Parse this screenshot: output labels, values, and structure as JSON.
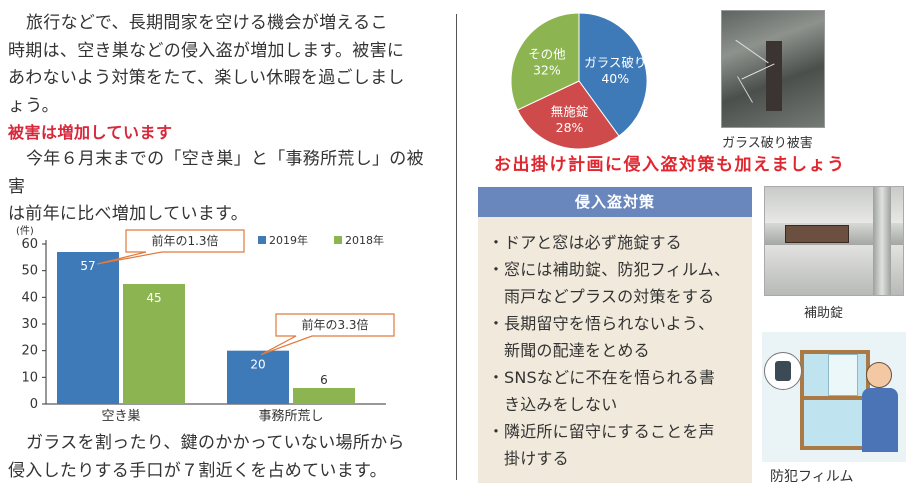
{
  "intro": {
    "line1": "旅行などで、長期間家を空ける機会が増えるこ",
    "line2": "時期は、空き巣などの侵入盗が増加します。被害に",
    "line3": "あわないよう対策をたて、楽しい休暇を過ごしまし",
    "line4": "ょう。"
  },
  "heading_increase": "被害は増加しています",
  "para2": {
    "line1": "今年６月末までの「空き巣」と「事務所荒し」の被害",
    "line2": "は前年に比べ増加しています。"
  },
  "bottom": {
    "line1": "ガラスを割ったり、鍵のかかっていない場所から",
    "line2": "侵入したりする手口が７割近くを占めています。"
  },
  "chart_data": [
    {
      "type": "bar",
      "categories": [
        "空き巣",
        "事務所荒し"
      ],
      "series": [
        {
          "name": "2019年",
          "values": [
            57,
            20
          ],
          "color": "#3e7ab8"
        },
        {
          "name": "2018年",
          "values": [
            45,
            6
          ],
          "color": "#8cb450"
        }
      ],
      "ylabel": "(件)",
      "ylim": [
        0,
        60
      ],
      "yticks": [
        0,
        10,
        20,
        30,
        40,
        50,
        60
      ],
      "legend": "top",
      "annotations": [
        "前年の1.3倍",
        "前年の3.3倍"
      ],
      "grid": false
    },
    {
      "type": "pie",
      "labels": [
        "ガラス破り",
        "無施錠",
        "その他"
      ],
      "values": [
        40,
        28,
        32
      ],
      "value_labels": [
        "40%",
        "28%",
        "32%"
      ],
      "colors": [
        "#3e7ab8",
        "#cf4a4a",
        "#8cb450"
      ]
    }
  ],
  "captions": {
    "glass_photo": "ガラス破り被害",
    "lock_photo": "補助錠",
    "film_illus": "防犯フィルム"
  },
  "heading_outing": "お出掛け計画に侵入盗対策も加えましょう",
  "measures": {
    "title": "侵入盗対策",
    "bullet": "・",
    "items": [
      {
        "lines": [
          "ドアと窓は必ず施錠する"
        ]
      },
      {
        "lines": [
          "窓には補助錠、防犯フィルム、",
          "雨戸などプラスの対策をする"
        ]
      },
      {
        "lines": [
          "長期留守を悟られないよう、",
          "新聞の配達をとめる"
        ]
      },
      {
        "lines": [
          "SNSなどに不在を悟られる書",
          "き込みをしない"
        ]
      },
      {
        "lines": [
          "隣近所に留守にすることを声",
          "掛けする"
        ]
      }
    ]
  }
}
